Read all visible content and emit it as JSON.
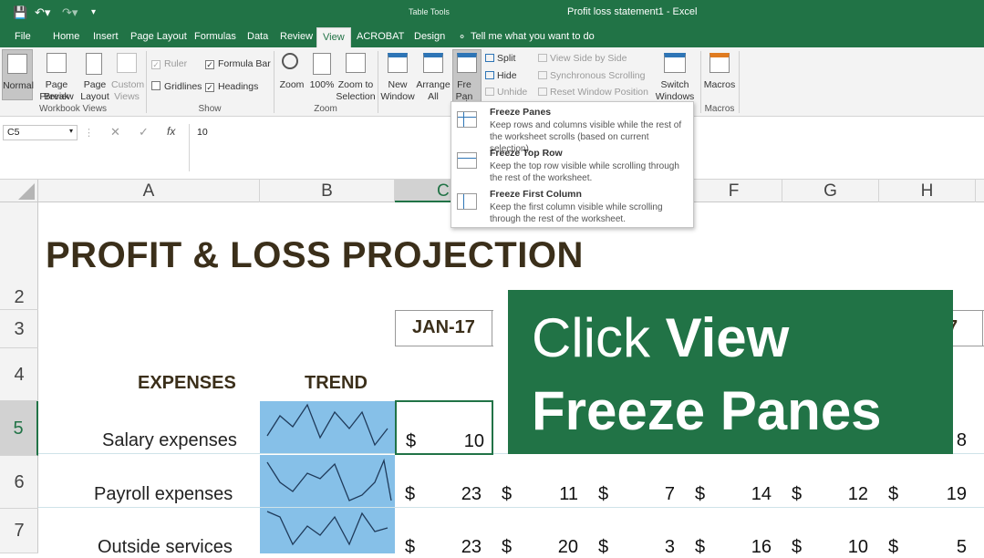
{
  "titlebar": {
    "context_tab": "Table Tools",
    "title": "Profit loss statement1  -  Excel"
  },
  "tabs": [
    "File",
    "Home",
    "Insert",
    "Page Layout",
    "Formulas",
    "Data",
    "Review",
    "View",
    "ACROBAT",
    "Design"
  ],
  "tell_me": "Tell me what you want to do",
  "ribbon": {
    "workbook_views": {
      "label": "Workbook Views",
      "normal": "Normal",
      "page_break": [
        "Page Break",
        "Preview"
      ],
      "page_layout": [
        "Page",
        "Layout"
      ],
      "custom_views": [
        "Custom",
        "Views"
      ]
    },
    "show": {
      "label": "Show",
      "ruler": "Ruler",
      "formula_bar": "Formula Bar",
      "gridlines": "Gridlines",
      "headings": "Headings"
    },
    "zoom": {
      "label": "Zoom",
      "zoom": "Zoom",
      "hundred": "100%",
      "zoom_sel": [
        "Zoom to",
        "Selection"
      ]
    },
    "window": {
      "new_window": [
        "New",
        "Window"
      ],
      "arrange_all": [
        "Arrange",
        "All"
      ],
      "freeze_panes": [
        "Fre",
        "Pan"
      ],
      "split": "Split",
      "hide": "Hide",
      "unhide": "Unhide",
      "view_side": "View Side by Side",
      "sync_scroll": "Synchronous Scrolling",
      "reset_pos": "Reset Window Position",
      "switch": [
        "Switch",
        "Windows"
      ]
    },
    "macros": {
      "label": "Macros",
      "button": "Macros"
    }
  },
  "formula_bar": {
    "name_box": "C5",
    "value": "10",
    "fx": "fx"
  },
  "freeze_menu": [
    {
      "title": "Freeze Panes",
      "desc": "Keep rows and columns visible while the rest of the worksheet scrolls (based on current selection)."
    },
    {
      "title": "Freeze Top Row",
      "desc": "Keep the top row visible while scrolling through the rest of the worksheet."
    },
    {
      "title": "Freeze First Column",
      "desc": "Keep the first column visible while scrolling through the rest of the worksheet."
    }
  ],
  "columns": [
    "A",
    "B",
    "C",
    "F",
    "G",
    "H"
  ],
  "rows": [
    "2",
    "3",
    "4",
    "5",
    "6",
    "7"
  ],
  "sheet": {
    "title": "PROFIT & LOSS PROJECTION",
    "month_jan": "JAN-17",
    "month_partial": "7",
    "expenses_hdr": "EXPENSES",
    "trend_hdr": "TREND",
    "currency": "$",
    "row5": {
      "label": "Salary expenses",
      "c": "10",
      "h_partial": "8"
    },
    "row6": {
      "label": "Payroll expenses",
      "values": [
        "23",
        "11",
        "7",
        "14",
        "12",
        "19"
      ]
    },
    "row7": {
      "label": "Outside services",
      "values": [
        "23",
        "20",
        "3",
        "16",
        "10",
        "5"
      ]
    }
  },
  "overlay": {
    "line1_normal": "Click ",
    "line1_bold": "View",
    "line2": "Freeze Panes"
  }
}
